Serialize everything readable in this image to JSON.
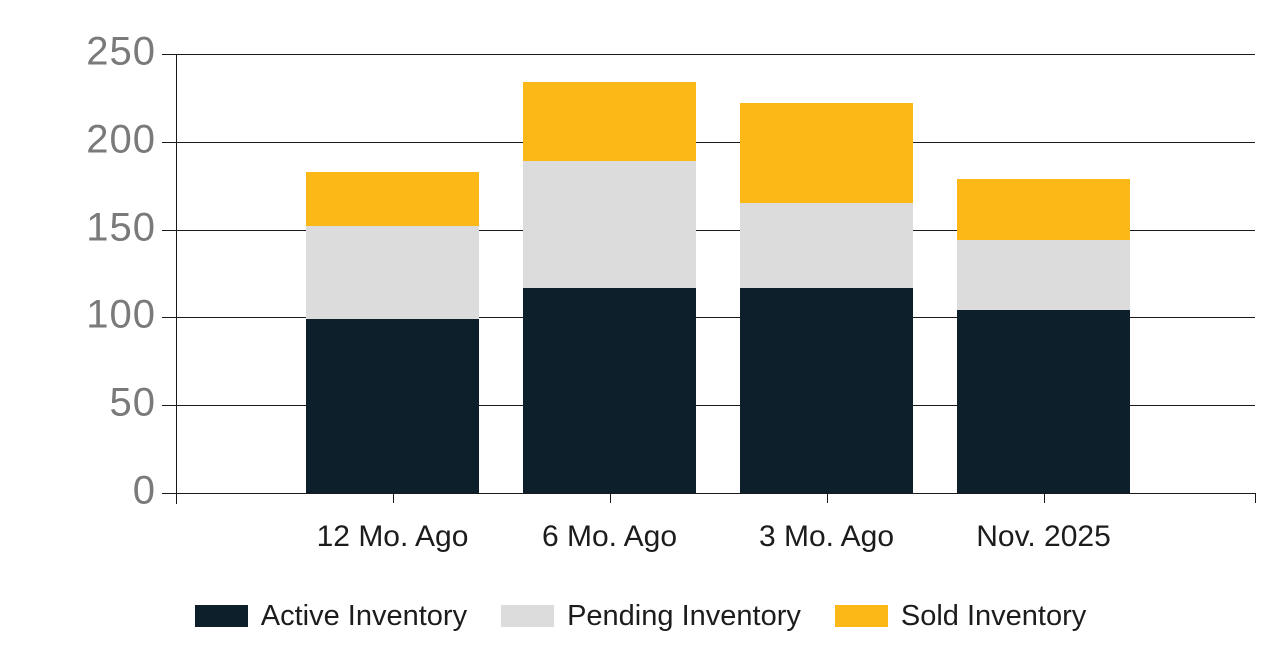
{
  "chart_data": {
    "type": "bar",
    "stacked": true,
    "title": "",
    "categories": [
      "12 Mo. Ago",
      "6 Mo. Ago",
      "3 Mo. Ago",
      "Nov. 2025"
    ],
    "series": [
      {
        "name": "Active Inventory",
        "color": "#0d1f2b",
        "values": [
          99,
          117,
          117,
          104
        ]
      },
      {
        "name": "Pending Inventory",
        "color": "#dcdcdc",
        "values": [
          53,
          72,
          48,
          40
        ]
      },
      {
        "name": "Sold Inventory",
        "color": "#fbb816",
        "values": [
          31,
          45,
          57,
          35
        ]
      }
    ],
    "stack_totals": [
      183,
      234,
      222,
      179
    ],
    "y_axis": {
      "min": 0,
      "max": 250,
      "tick_step": 50,
      "tick_labels": [
        "0",
        "50",
        "100",
        "150",
        "200",
        "250"
      ]
    },
    "x_axis_label": "",
    "y_axis_label": "",
    "grid": true,
    "legend_position": "bottom"
  },
  "colors": {
    "background": "#ffffff",
    "gridline": "#1a1a1a",
    "y_tick_label": "#7a7a7a",
    "x_tick_label": "#1c1c1c",
    "legend_text": "#1c1c1c",
    "active_inventory": "#0d1f2b",
    "pending_inventory": "#dcdcdc",
    "sold_inventory": "#fbb816"
  }
}
